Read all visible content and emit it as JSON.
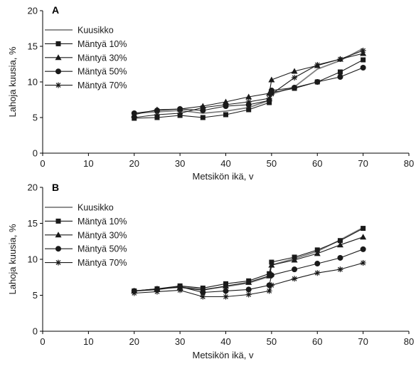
{
  "chart_data": [
    {
      "type": "line",
      "panel": "A",
      "xlabel": "Metsikön ikä, v",
      "ylabel": "Lahoja kuusia, %",
      "xlim": [
        0,
        80
      ],
      "ylim": [
        0,
        20
      ],
      "xticks": [
        0,
        10,
        20,
        30,
        40,
        50,
        60,
        70,
        80
      ],
      "yticks": [
        0,
        5,
        10,
        15,
        20
      ],
      "grid": false,
      "legend_position": "top-left",
      "series": [
        {
          "name": "Kuusikko",
          "marker": "none",
          "color": "#808080",
          "points": [
            [
              20,
              5.6
            ],
            [
              25,
              5.8
            ],
            [
              30,
              6.0
            ],
            [
              35,
              5.6
            ],
            [
              40,
              5.9
            ],
            [
              45,
              6.4
            ],
            [
              49.5,
              7.4
            ],
            [
              50,
              8.3
            ],
            [
              55,
              9.3
            ],
            [
              60,
              11.8
            ],
            [
              65,
              13.0
            ],
            [
              70,
              14.7
            ]
          ]
        },
        {
          "name": "Mäntyä 10%",
          "marker": "square",
          "color": "#1a1a1a",
          "points": [
            [
              20,
              4.9
            ],
            [
              25,
              5.0
            ],
            [
              30,
              5.3
            ],
            [
              35,
              5.0
            ],
            [
              40,
              5.4
            ],
            [
              45,
              6.1
            ],
            [
              49.5,
              7.1
            ],
            [
              50,
              8.5
            ],
            [
              55,
              9.1
            ],
            [
              60,
              10.0
            ],
            [
              65,
              11.4
            ],
            [
              70,
              13.1
            ]
          ]
        },
        {
          "name": "Mäntyä 30%",
          "marker": "triangle",
          "color": "#1a1a1a",
          "points": [
            [
              20,
              5.4
            ],
            [
              25,
              6.1
            ],
            [
              30,
              6.2
            ],
            [
              35,
              6.6
            ],
            [
              40,
              7.2
            ],
            [
              45,
              7.9
            ],
            [
              49.5,
              8.4
            ],
            [
              50,
              10.3
            ],
            [
              55,
              11.5
            ],
            [
              60,
              12.3
            ],
            [
              65,
              13.2
            ],
            [
              70,
              14.0
            ]
          ]
        },
        {
          "name": "Mäntyä 50%",
          "marker": "circle",
          "color": "#1a1a1a",
          "points": [
            [
              20,
              5.6
            ],
            [
              25,
              6.0
            ],
            [
              30,
              6.2
            ],
            [
              35,
              6.0
            ],
            [
              40,
              6.6
            ],
            [
              45,
              6.8
            ],
            [
              49.5,
              7.4
            ],
            [
              50,
              8.8
            ],
            [
              55,
              9.2
            ],
            [
              60,
              10.0
            ],
            [
              65,
              10.7
            ],
            [
              70,
              12.0
            ]
          ]
        },
        {
          "name": "Mäntyä 70%",
          "marker": "star",
          "color": "#1a1a1a",
          "points": [
            [
              20,
              5.0
            ],
            [
              25,
              5.4
            ],
            [
              30,
              5.6
            ],
            [
              35,
              6.4
            ],
            [
              40,
              6.8
            ],
            [
              45,
              7.2
            ],
            [
              49.5,
              7.7
            ],
            [
              50,
              8.3
            ],
            [
              55,
              10.6
            ],
            [
              60,
              12.4
            ],
            [
              65,
              13.2
            ],
            [
              70,
              14.4
            ]
          ]
        }
      ]
    },
    {
      "type": "line",
      "panel": "B",
      "xlabel": "Metsikön ikä, v",
      "ylabel": "Lahoja kuusia, %",
      "xlim": [
        0,
        80
      ],
      "ylim": [
        0,
        20
      ],
      "xticks": [
        0,
        10,
        20,
        30,
        40,
        50,
        60,
        70,
        80
      ],
      "yticks": [
        0,
        5,
        10,
        15,
        20
      ],
      "grid": false,
      "legend_position": "top-left",
      "series": [
        {
          "name": "Kuusikko",
          "marker": "none",
          "color": "#808080",
          "points": [
            [
              20,
              5.6
            ],
            [
              25,
              5.8
            ],
            [
              30,
              6.2
            ],
            [
              35,
              5.8
            ],
            [
              40,
              6.2
            ],
            [
              45,
              6.7
            ],
            [
              49.5,
              7.6
            ],
            [
              50,
              9.2
            ],
            [
              55,
              10.1
            ],
            [
              60,
              11.1
            ],
            [
              65,
              12.7
            ],
            [
              70,
              14.4
            ]
          ]
        },
        {
          "name": "Mäntyä 10%",
          "marker": "square",
          "color": "#1a1a1a",
          "points": [
            [
              20,
              5.6
            ],
            [
              25,
              5.9
            ],
            [
              30,
              6.3
            ],
            [
              35,
              6.0
            ],
            [
              40,
              6.6
            ],
            [
              45,
              7.0
            ],
            [
              49.5,
              8.0
            ],
            [
              50,
              9.6
            ],
            [
              55,
              10.3
            ],
            [
              60,
              11.3
            ],
            [
              65,
              12.6
            ],
            [
              70,
              14.3
            ]
          ]
        },
        {
          "name": "Mäntyä 30%",
          "marker": "triangle",
          "color": "#1a1a1a",
          "points": [
            [
              20,
              5.6
            ],
            [
              25,
              5.9
            ],
            [
              30,
              6.1
            ],
            [
              35,
              5.7
            ],
            [
              40,
              6.3
            ],
            [
              45,
              6.8
            ],
            [
              49.5,
              7.7
            ],
            [
              50,
              9.2
            ],
            [
              55,
              9.9
            ],
            [
              60,
              10.8
            ],
            [
              65,
              12.0
            ],
            [
              70,
              13.1
            ]
          ]
        },
        {
          "name": "Mäntyä 50%",
          "marker": "circle",
          "color": "#1a1a1a",
          "points": [
            [
              20,
              5.6
            ],
            [
              25,
              5.8
            ],
            [
              30,
              6.2
            ],
            [
              35,
              5.4
            ],
            [
              40,
              5.6
            ],
            [
              45,
              5.8
            ],
            [
              49.5,
              6.4
            ],
            [
              50,
              7.8
            ],
            [
              55,
              8.6
            ],
            [
              60,
              9.4
            ],
            [
              65,
              10.2
            ],
            [
              70,
              11.4
            ]
          ]
        },
        {
          "name": "Mäntyä 70%",
          "marker": "star",
          "color": "#1a1a1a",
          "points": [
            [
              20,
              5.3
            ],
            [
              25,
              5.5
            ],
            [
              30,
              5.7
            ],
            [
              35,
              4.8
            ],
            [
              40,
              4.8
            ],
            [
              45,
              5.1
            ],
            [
              49.5,
              5.6
            ],
            [
              50,
              6.4
            ],
            [
              55,
              7.3
            ],
            [
              60,
              8.1
            ],
            [
              65,
              8.6
            ],
            [
              70,
              9.5
            ]
          ]
        }
      ]
    }
  ]
}
